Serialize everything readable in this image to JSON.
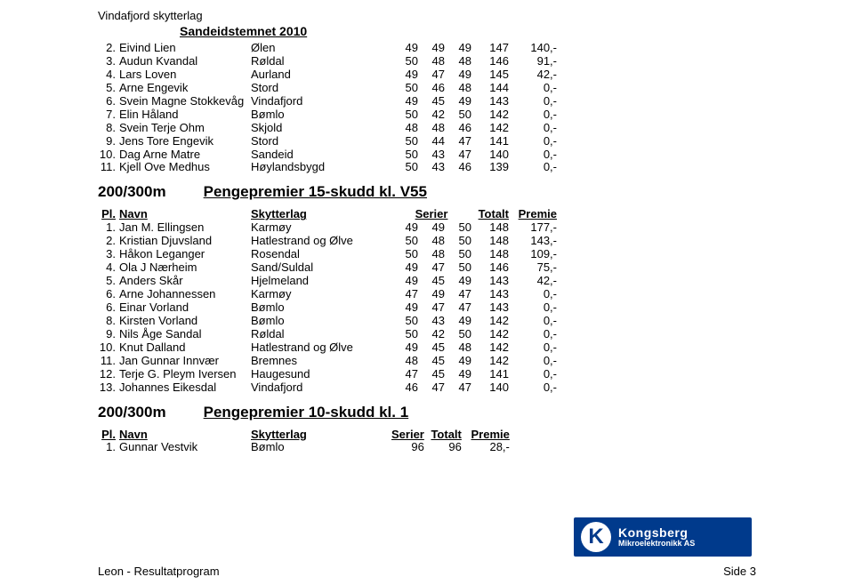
{
  "org_name": "Vindafjord skytterlag",
  "event_title": "Sandeidstemnet 2010",
  "header": {
    "pl": "Pl.",
    "name": "Navn",
    "club": "Skytterlag",
    "series": "Serier",
    "total": "Totalt",
    "prize": "Premie"
  },
  "top_rows": [
    {
      "pl": "2.",
      "name": "Eivind Lien",
      "club": "Ølen",
      "s": [
        "49",
        "49",
        "49"
      ],
      "total": "147",
      "prize": "140,-"
    },
    {
      "pl": "3.",
      "name": "Audun Kvandal",
      "club": "Røldal",
      "s": [
        "50",
        "48",
        "48"
      ],
      "total": "146",
      "prize": "91,-"
    },
    {
      "pl": "4.",
      "name": "Lars Loven",
      "club": "Aurland",
      "s": [
        "49",
        "47",
        "49"
      ],
      "total": "145",
      "prize": "42,-"
    },
    {
      "pl": "5.",
      "name": "Arne Engevik",
      "club": "Stord",
      "s": [
        "50",
        "46",
        "48"
      ],
      "total": "144",
      "prize": "0,-"
    },
    {
      "pl": "6.",
      "name": "Svein Magne Stokkevåg",
      "club": "Vindafjord",
      "s": [
        "49",
        "45",
        "49"
      ],
      "total": "143",
      "prize": "0,-"
    },
    {
      "pl": "7.",
      "name": "Elin Håland",
      "club": "Bømlo",
      "s": [
        "50",
        "42",
        "50"
      ],
      "total": "142",
      "prize": "0,-"
    },
    {
      "pl": "8.",
      "name": "Svein Terje Ohm",
      "club": "Skjold",
      "s": [
        "48",
        "48",
        "46"
      ],
      "total": "142",
      "prize": "0,-"
    },
    {
      "pl": "9.",
      "name": "Jens Tore Engevik",
      "club": "Stord",
      "s": [
        "50",
        "44",
        "47"
      ],
      "total": "141",
      "prize": "0,-"
    },
    {
      "pl": "10.",
      "name": "Dag Arne Matre",
      "club": "Sandeid",
      "s": [
        "50",
        "43",
        "47"
      ],
      "total": "140",
      "prize": "0,-"
    },
    {
      "pl": "11.",
      "name": "Kjell Ove Medhus",
      "club": "Høylandsbygd",
      "s": [
        "50",
        "43",
        "46"
      ],
      "total": "139",
      "prize": "0,-"
    }
  ],
  "section1": {
    "cat": "200/300m",
    "title": "Pengepremier 15-skudd kl. V55"
  },
  "v55_rows": [
    {
      "pl": "1.",
      "name": "Jan M. Ellingsen",
      "club": "Karmøy",
      "s": [
        "49",
        "49",
        "50"
      ],
      "total": "148",
      "prize": "177,-"
    },
    {
      "pl": "2.",
      "name": "Kristian Djuvsland",
      "club": "Hatlestrand og Ølve",
      "s": [
        "50",
        "48",
        "50"
      ],
      "total": "148",
      "prize": "143,-"
    },
    {
      "pl": "3.",
      "name": "Håkon Leganger",
      "club": "Rosendal",
      "s": [
        "50",
        "48",
        "50"
      ],
      "total": "148",
      "prize": "109,-"
    },
    {
      "pl": "4.",
      "name": "Ola J Nærheim",
      "club": "Sand/Suldal",
      "s": [
        "49",
        "47",
        "50"
      ],
      "total": "146",
      "prize": "75,-"
    },
    {
      "pl": "5.",
      "name": "Anders Skår",
      "club": "Hjelmeland",
      "s": [
        "49",
        "45",
        "49"
      ],
      "total": "143",
      "prize": "42,-"
    },
    {
      "pl": "6.",
      "name": "Arne Johannessen",
      "club": "Karmøy",
      "s": [
        "47",
        "49",
        "47"
      ],
      "total": "143",
      "prize": "0,-"
    },
    {
      "pl": "6.",
      "name": "Einar Vorland",
      "club": "Bømlo",
      "s": [
        "49",
        "47",
        "47"
      ],
      "total": "143",
      "prize": "0,-"
    },
    {
      "pl": "8.",
      "name": "Kirsten Vorland",
      "club": "Bømlo",
      "s": [
        "50",
        "43",
        "49"
      ],
      "total": "142",
      "prize": "0,-"
    },
    {
      "pl": "9.",
      "name": "Nils Åge Sandal",
      "club": "Røldal",
      "s": [
        "50",
        "42",
        "50"
      ],
      "total": "142",
      "prize": "0,-"
    },
    {
      "pl": "10.",
      "name": "Knut Dalland",
      "club": "Hatlestrand og Ølve",
      "s": [
        "49",
        "45",
        "48"
      ],
      "total": "142",
      "prize": "0,-"
    },
    {
      "pl": "11.",
      "name": "Jan Gunnar Innvær",
      "club": "Bremnes",
      "s": [
        "48",
        "45",
        "49"
      ],
      "total": "142",
      "prize": "0,-"
    },
    {
      "pl": "12.",
      "name": "Terje G. Pleym Iversen",
      "club": "Haugesund",
      "s": [
        "47",
        "45",
        "49"
      ],
      "total": "141",
      "prize": "0,-"
    },
    {
      "pl": "13.",
      "name": "Johannes Eikesdal",
      "club": "Vindafjord",
      "s": [
        "46",
        "47",
        "47"
      ],
      "total": "140",
      "prize": "0,-"
    }
  ],
  "section2": {
    "cat": "200/300m",
    "title": "Pengepremier 10-skudd kl. 1"
  },
  "kl1_rows": [
    {
      "pl": "1.",
      "name": "Gunnar Vestvik",
      "club": "Bømlo",
      "s": [
        "96"
      ],
      "total": "96",
      "prize": "28,-"
    }
  ],
  "logo": {
    "k": "K",
    "brand": "Kongsberg",
    "sub": "Mikroelektronikk AS"
  },
  "footer": {
    "left": "Leon - Resultatprogram",
    "right": "Side 3"
  }
}
